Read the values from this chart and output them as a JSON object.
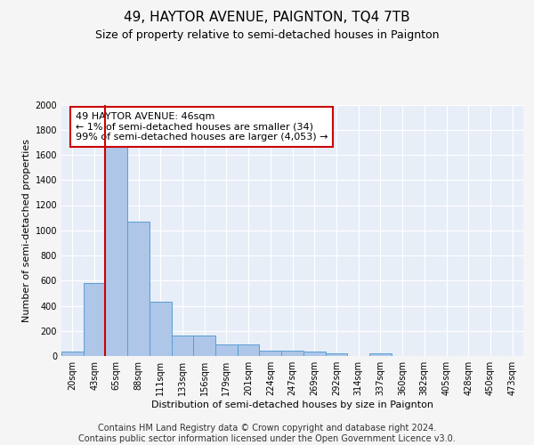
{
  "title": "49, HAYTOR AVENUE, PAIGNTON, TQ4 7TB",
  "subtitle": "Size of property relative to semi-detached houses in Paignton",
  "xlabel": "Distribution of semi-detached houses by size in Paignton",
  "ylabel": "Number of semi-detached properties",
  "categories": [
    "20sqm",
    "43sqm",
    "65sqm",
    "88sqm",
    "111sqm",
    "133sqm",
    "156sqm",
    "179sqm",
    "201sqm",
    "224sqm",
    "247sqm",
    "269sqm",
    "292sqm",
    "314sqm",
    "337sqm",
    "360sqm",
    "382sqm",
    "405sqm",
    "428sqm",
    "450sqm",
    "473sqm"
  ],
  "values": [
    35,
    580,
    1680,
    1070,
    430,
    160,
    160,
    95,
    95,
    45,
    40,
    35,
    20,
    0,
    20,
    0,
    0,
    0,
    0,
    0,
    0
  ],
  "bar_color": "#aec6e8",
  "bar_edge_color": "#5a9fd4",
  "red_line_x": 1.5,
  "annotation_text": "49 HAYTOR AVENUE: 46sqm\n← 1% of semi-detached houses are smaller (34)\n99% of semi-detached houses are larger (4,053) →",
  "annotation_box_color": "#ffffff",
  "annotation_box_edge": "#cc0000",
  "ylim": [
    0,
    2000
  ],
  "yticks": [
    0,
    200,
    400,
    600,
    800,
    1000,
    1200,
    1400,
    1600,
    1800,
    2000
  ],
  "footer_text": "Contains HM Land Registry data © Crown copyright and database right 2024.\nContains public sector information licensed under the Open Government Licence v3.0.",
  "background_color": "#f5f5f5",
  "plot_bg_color": "#e8eef8",
  "grid_color": "#ffffff",
  "title_fontsize": 11,
  "subtitle_fontsize": 9,
  "axis_label_fontsize": 8,
  "tick_fontsize": 7,
  "annotation_fontsize": 8,
  "footer_fontsize": 7
}
